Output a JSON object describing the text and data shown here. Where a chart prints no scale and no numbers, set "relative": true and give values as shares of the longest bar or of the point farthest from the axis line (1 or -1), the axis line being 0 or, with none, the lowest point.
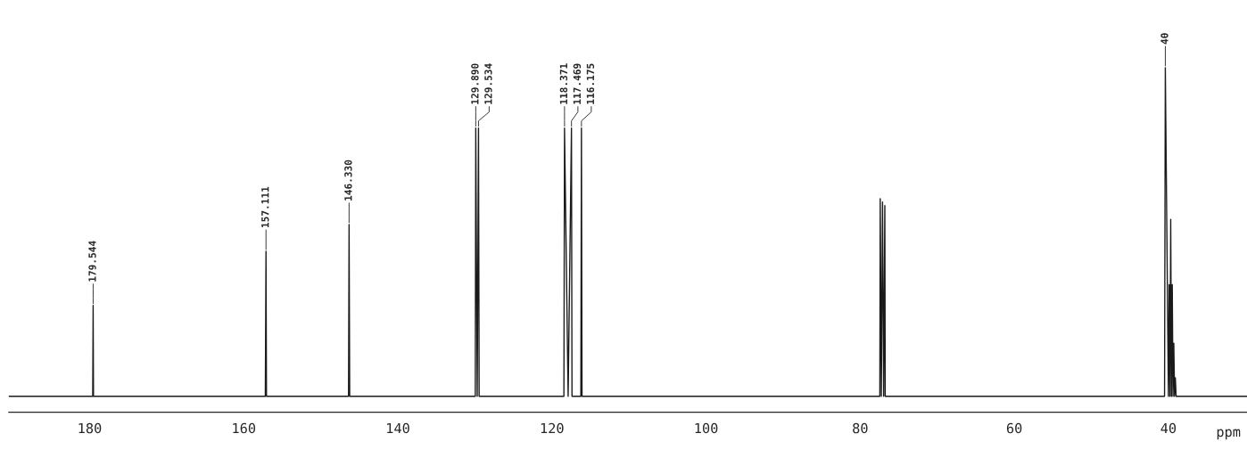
{
  "chart_data": {
    "type": "line",
    "relative": true,
    "xlabel": "ppm",
    "xlim": [
      190.5,
      29.8
    ],
    "xticks": [
      180,
      160,
      140,
      120,
      100,
      80,
      60,
      40
    ],
    "grid": false,
    "legend": false,
    "series": [
      {
        "color": "#1a1a1a",
        "x": [
          190.5,
          179.6,
          179.544,
          179.5,
          157.2,
          157.111,
          157.05,
          146.4,
          146.33,
          146.25,
          129.95,
          129.89,
          129.7,
          129.534,
          129.45,
          118.45,
          118.371,
          117.9,
          117.469,
          117.4,
          116.25,
          116.175,
          116.1,
          77.45,
          77.4,
          77.25,
          77.1,
          76.95,
          76.8,
          76.75,
          40.5,
          40.4,
          40.0,
          39.9,
          39.8,
          39.7,
          39.6,
          39.5,
          39.4,
          39.3,
          39.2,
          39.1,
          39.0,
          29.8
        ],
        "values": [
          0.046,
          0.046,
          0.31,
          0.046,
          0.046,
          0.467,
          0.046,
          0.046,
          0.545,
          0.046,
          0.046,
          0.825,
          0.046,
          0.825,
          0.046,
          0.046,
          0.825,
          0.046,
          0.825,
          0.046,
          0.046,
          0.825,
          0.046,
          0.046,
          0.62,
          0.046,
          0.61,
          0.046,
          0.6,
          0.046,
          0.046,
          1.0,
          0.046,
          0.37,
          0.046,
          0.56,
          0.046,
          0.37,
          0.046,
          0.2,
          0.046,
          0.1,
          0.046,
          0.046
        ]
      }
    ],
    "annotations": [
      {
        "text": "179.544",
        "x": 179.544,
        "y": 0.31
      },
      {
        "text": "157.111",
        "x": 157.111,
        "y": 0.467
      },
      {
        "text": "146.330",
        "x": 146.33,
        "y": 0.545
      },
      {
        "text": "129.890",
        "x": 129.89,
        "y": 0.825
      },
      {
        "text": "129.534",
        "x": 129.534,
        "y": 0.825
      },
      {
        "text": "118.371",
        "x": 118.371,
        "y": 0.825
      },
      {
        "text": "117.469",
        "x": 117.469,
        "y": 0.825
      },
      {
        "text": "116.175",
        "x": 116.175,
        "y": 0.825
      },
      {
        "text": "40",
        "x": 40.4,
        "y": 1.0
      }
    ]
  }
}
